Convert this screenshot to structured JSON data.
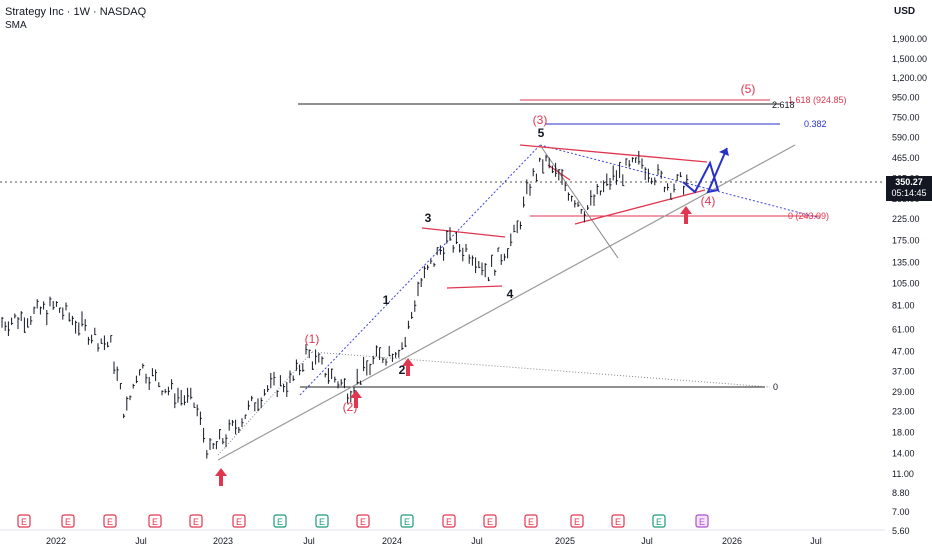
{
  "header": {
    "title": "Strategy Inc · 1W · NASDAQ",
    "indicator": "SMA",
    "currency": "USD"
  },
  "price_badge": {
    "value": "350.27",
    "countdown": "05:14:45"
  },
  "colors": {
    "accent_red": "#e0364f",
    "blue": "#2830c8",
    "candle": "#131722",
    "badge": "#131722"
  },
  "chart_data": {
    "type": "line",
    "y_scale": "log",
    "ylim": [
      5.6,
      3000
    ],
    "y_ticks": [
      "1,900.00",
      "1,500.00",
      "1,200.00",
      "950.00",
      "750.00",
      "590.00",
      "465.00",
      "365.00",
      "285.00",
      "225.00",
      "175.00",
      "135.00",
      "105.00",
      "81.00",
      "61.00",
      "47.00",
      "37.00",
      "29.00",
      "23.00",
      "18.00",
      "14.00",
      "11.00",
      "8.80",
      "7.00",
      "5.60"
    ],
    "x_ticks": [
      "2022",
      "Jul",
      "2023",
      "Jul",
      "2024",
      "Jul",
      "2025",
      "Jul",
      "2026",
      "Jul"
    ],
    "series": [
      {
        "x": [
          "2021-11",
          "2022-01",
          "2022-03",
          "2022-05",
          "2022-06",
          "2022-07",
          "2022-09",
          "2022-11",
          "2022-12",
          "2023-02",
          "2023-04",
          "2023-06",
          "2023-07",
          "2023-09",
          "2023-10",
          "2023-12",
          "2024-02",
          "2024-03",
          "2024-05",
          "2024-07",
          "2024-08",
          "2024-10",
          "2024-11",
          "2024-12",
          "2025-02",
          "2025-03",
          "2025-05",
          "2025-07",
          "2025-09",
          "2025-10"
        ],
        "values": [
          72,
          80,
          62,
          50,
          22,
          40,
          30,
          25,
          14,
          20,
          30,
          33,
          46,
          34,
          30,
          43,
          52,
          100,
          175,
          150,
          120,
          190,
          350,
          450,
          300,
          250,
          370,
          440,
          330,
          350
        ]
      }
    ],
    "annotations": {
      "wave_labels_red": [
        "(1)",
        "(2)",
        "(3)",
        "(4)",
        "(5)"
      ],
      "wave_labels_black": [
        "1",
        "2",
        "3",
        "4",
        "5"
      ],
      "fib_labels": [
        "1.618 (924.85)",
        "2.618",
        "0.382",
        "0 (243.09)",
        "0"
      ],
      "earnings_marker": "E"
    }
  }
}
